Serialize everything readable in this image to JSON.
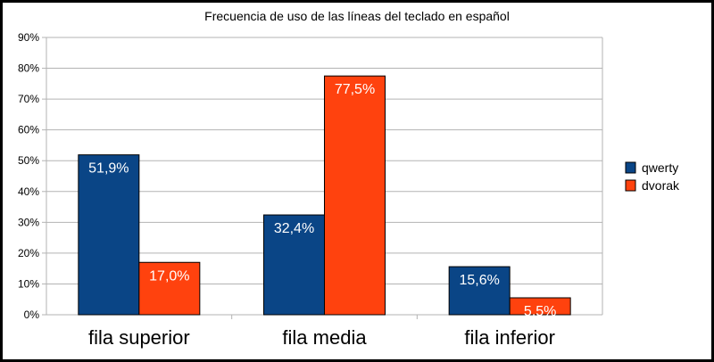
{
  "chart_data": {
    "type": "bar",
    "title": "Frecuencia de uso de las líneas del teclado en español",
    "categories": [
      "fila superior",
      "fila media",
      "fila inferior"
    ],
    "series": [
      {
        "name": "qwerty",
        "values": [
          51.9,
          32.4,
          15.6
        ],
        "labels": [
          "51,9%",
          "32,4%",
          "15,6%"
        ],
        "color": "#0a4586"
      },
      {
        "name": "dvorak",
        "values": [
          17.0,
          77.5,
          5.5
        ],
        "labels": [
          "17,0%",
          "77,5%",
          "5,5%"
        ],
        "color": "#ff420e"
      }
    ],
    "ylim": [
      0,
      90
    ],
    "yticks": [
      "0%",
      "10%",
      "20%",
      "30%",
      "40%",
      "50%",
      "60%",
      "70%",
      "80%",
      "90%"
    ],
    "grid": true,
    "legend_position": "right",
    "xlabel": "",
    "ylabel": ""
  }
}
